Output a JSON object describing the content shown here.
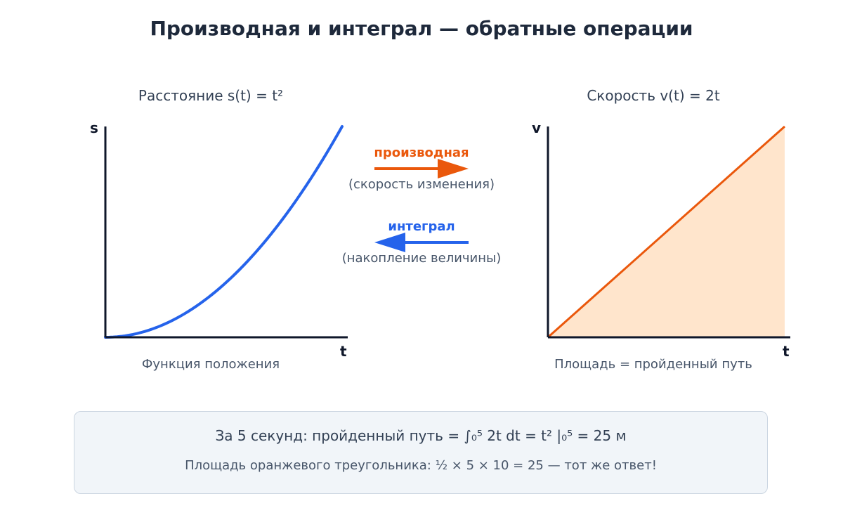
{
  "title": "Производная и интеграл — обратные операции",
  "colors": {
    "distance_curve": "#2563eb",
    "velocity_line": "#ea580c",
    "area_fill": "#ffe5cc",
    "axes": "#0f172a",
    "derivative": "#ea580c",
    "integral": "#2563eb"
  },
  "left_panel": {
    "title": "Расстояние s(t) = t²",
    "y_axis_label": "s",
    "x_axis_label": "t",
    "caption": "Функция положения"
  },
  "right_panel": {
    "title": "Скорость v(t) = 2t",
    "y_axis_label": "v",
    "x_axis_label": "t",
    "caption": "Площадь = пройденный путь"
  },
  "operations": {
    "derivative": {
      "label": "производная",
      "description": "(скорость изменения)",
      "direction": "right"
    },
    "integral": {
      "label": "интеграл",
      "description": "(накопление величины)",
      "direction": "left"
    }
  },
  "summary": {
    "main": "За 5 секунд: пройденный путь = ∫₀⁵ 2t dt = t² |₀⁵ = 25 м",
    "sub": "Площадь оранжевого треугольника: ½ × 5 × 10 = 25 — тот же ответ!"
  },
  "chart_data": [
    {
      "type": "line",
      "series": [
        {
          "function": "s(t) = t²",
          "x": [
            0,
            1,
            2,
            3,
            4,
            5
          ],
          "y": [
            0,
            1,
            4,
            9,
            16,
            25
          ]
        }
      ],
      "xlabel": "t",
      "ylabel": "s",
      "xlim": [
        0,
        5
      ],
      "ylim": [
        0,
        25
      ]
    },
    {
      "type": "area",
      "series": [
        {
          "function": "v(t) = 2t",
          "x": [
            0,
            5
          ],
          "y": [
            0,
            10
          ]
        }
      ],
      "xlabel": "t",
      "ylabel": "v",
      "xlim": [
        0,
        5
      ],
      "ylim": [
        0,
        10
      ]
    }
  ]
}
